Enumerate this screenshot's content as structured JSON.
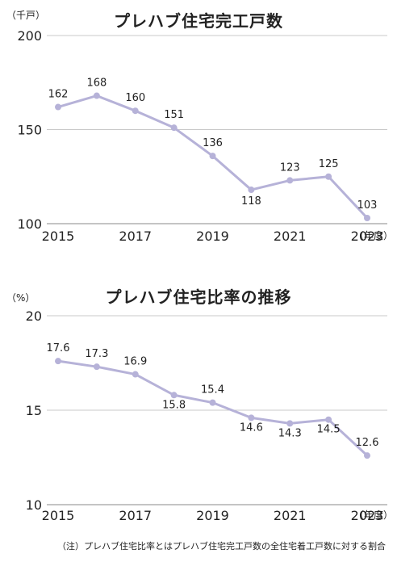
{
  "chart_data": [
    {
      "type": "line",
      "title": "プレハブ住宅完工戸数",
      "unit": "（千戸）",
      "x_unit": "（年度）",
      "x": [
        2015,
        2016,
        2017,
        2018,
        2019,
        2020,
        2021,
        2022,
        2023
      ],
      "x_tick_labels": [
        "2015",
        "2017",
        "2019",
        "2021",
        "2023"
      ],
      "y_tick_labels": [
        "200",
        "150",
        "100"
      ],
      "series": [
        {
          "values": [
            162,
            168,
            160,
            151,
            136,
            118,
            123,
            125,
            103
          ],
          "labels": [
            "162",
            "168",
            "160",
            "151",
            "136",
            "118",
            "123",
            "125",
            "103"
          ]
        }
      ],
      "ylim": [
        100,
        200
      ],
      "grid": true,
      "color": "#b6b2d8"
    },
    {
      "type": "line",
      "title": "プレハブ住宅比率の推移",
      "unit": "（%）",
      "x_unit": "（年度）",
      "x": [
        2015,
        2016,
        2017,
        2018,
        2019,
        2020,
        2021,
        2022,
        2023
      ],
      "x_tick_labels": [
        "2015",
        "2017",
        "2019",
        "2021",
        "2023"
      ],
      "y_tick_labels": [
        "20",
        "15",
        "10"
      ],
      "series": [
        {
          "values": [
            17.6,
            17.3,
            16.9,
            15.8,
            15.4,
            14.6,
            14.3,
            14.5,
            12.6
          ],
          "labels": [
            "17.6",
            "17.3",
            "16.9",
            "15.8",
            "15.4",
            "14.6",
            "14.3",
            "14.5",
            "12.6"
          ]
        }
      ],
      "ylim": [
        10,
        20
      ],
      "grid": true,
      "color": "#b6b2d8"
    }
  ],
  "footnote": "（注）プレハブ住宅比率とはプレハブ住宅完工戸数の全住宅着工戸数に対する割合"
}
